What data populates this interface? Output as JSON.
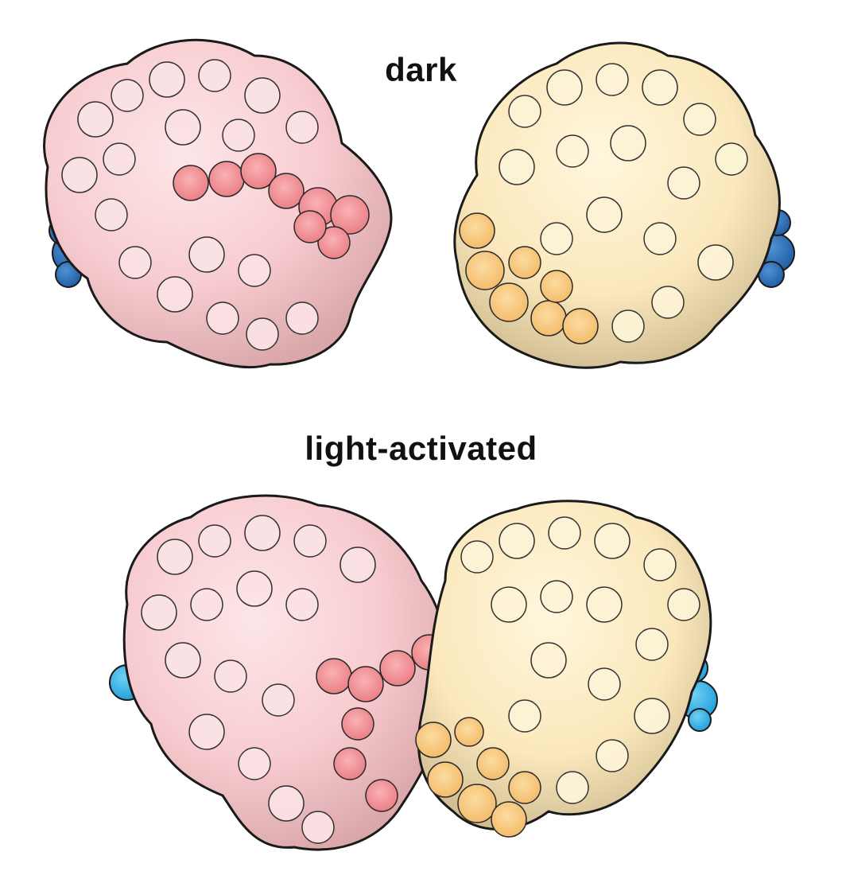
{
  "labels": {
    "dark": "dark",
    "light": "light-activated"
  },
  "colors": {
    "pink_light": "#fbe0e3",
    "pink_mid": "#f7c2c6",
    "pink_dark": "#f28f94",
    "pink_shadow": "#c99a9c",
    "yellow_light": "#fdf2d2",
    "yellow_mid": "#fbe2a9",
    "yellow_dark": "#f9c26f",
    "yellow_shadow": "#b9a784",
    "blue_dark": "#2f6fb5",
    "blue_light": "#3bb6e8",
    "outline": "#1a1a1a"
  },
  "proteins": [
    {
      "name": "dark-pink-protein",
      "group": "dark",
      "color_role": "pink"
    },
    {
      "name": "dark-yellow-protein",
      "group": "dark",
      "color_role": "yellow"
    },
    {
      "name": "light-pink-protein",
      "group": "light",
      "color_role": "pink"
    },
    {
      "name": "light-yellow-protein",
      "group": "light",
      "color_role": "yellow"
    }
  ]
}
